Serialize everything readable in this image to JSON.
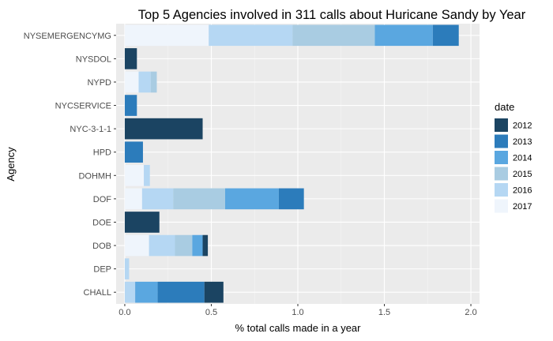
{
  "chart_data": {
    "type": "bar",
    "orientation": "horizontal",
    "stacked": true,
    "title": "Top 5 Agencies involved in 311 calls about Huricane Sandy by Year",
    "xlabel": "% total calls made in a year",
    "ylabel": "Agency",
    "xlim": [
      -0.05,
      2.05
    ],
    "xticks": [
      0.0,
      0.5,
      1.0,
      1.5,
      2.0
    ],
    "xtick_labels": [
      "0.0",
      "0.5",
      "1.0",
      "1.5",
      "2.0"
    ],
    "grid": true,
    "legend": {
      "title": "date",
      "placement": "right"
    },
    "categories": [
      "NYSEMERGENCYMG",
      "NYSDOL",
      "NYPD",
      "NYCSERVICE",
      "NYC-3-1-1",
      "HPD",
      "DOHMH",
      "DOF",
      "DOE",
      "DOB",
      "DEP",
      "CHALL"
    ],
    "series": [
      {
        "name": "2017",
        "color": "#EFF5FC",
        "values": [
          0.485,
          0,
          0.08,
          0,
          0,
          0,
          0.11,
          0.1,
          0,
          0.14,
          0,
          0
        ]
      },
      {
        "name": "2016",
        "color": "#B5D7F3",
        "values": [
          0.485,
          0,
          0.07,
          0,
          0,
          0,
          0.035,
          0.18,
          0,
          0.15,
          0.025,
          0.06
        ]
      },
      {
        "name": "2015",
        "color": "#A9CCE2",
        "values": [
          0.475,
          0,
          0.035,
          0,
          0,
          0,
          0,
          0.3,
          0,
          0.1,
          0,
          0
        ]
      },
      {
        "name": "2014",
        "color": "#5AA7E0",
        "values": [
          0.335,
          0,
          0,
          0,
          0,
          0,
          0,
          0.31,
          0,
          0.06,
          0,
          0.13
        ]
      },
      {
        "name": "2013",
        "color": "#2C7CBB",
        "values": [
          0.15,
          0,
          0,
          0.07,
          0,
          0.105,
          0,
          0.145,
          0,
          0,
          0,
          0.27
        ]
      },
      {
        "name": "2012",
        "color": "#1B4462",
        "values": [
          0,
          0.07,
          0,
          0,
          0.45,
          0,
          0,
          0,
          0.2,
          0.03,
          0,
          0.11
        ]
      }
    ]
  }
}
